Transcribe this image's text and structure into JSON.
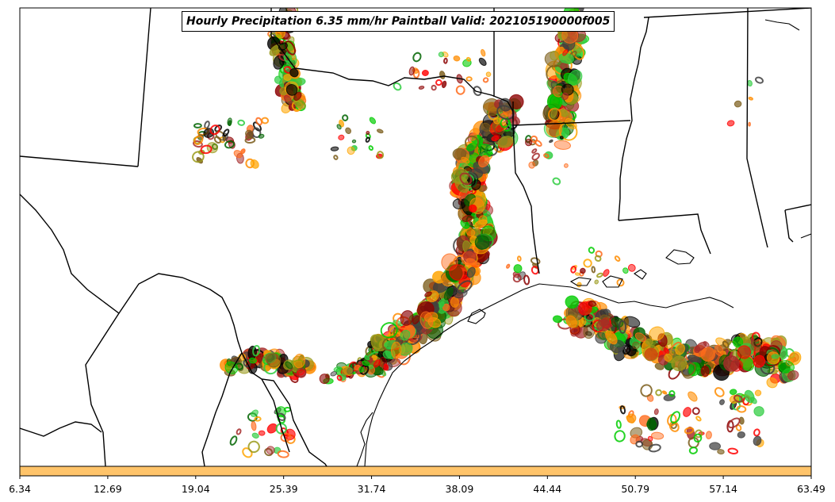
{
  "title": "Hourly Precipitation 6.35 mm/hr Paintball Valid: 202105190000f005",
  "colorbar": {
    "fill_color": "#ffc46a",
    "tick_labels": [
      "6.34",
      "12.69",
      "19.04",
      "25.39",
      "31.74",
      "38.09",
      "44.44",
      "50.79",
      "57.14",
      "63.49"
    ]
  },
  "member_colors": [
    "#ff8c00",
    "#ff6a1a",
    "#ff0000",
    "#00cc00",
    "#2ecc40",
    "#006400",
    "#8b0000",
    "#a52a2a",
    "#9a9a1a",
    "#7a5c1a",
    "#404040",
    "#000000",
    "#ffa500"
  ]
}
